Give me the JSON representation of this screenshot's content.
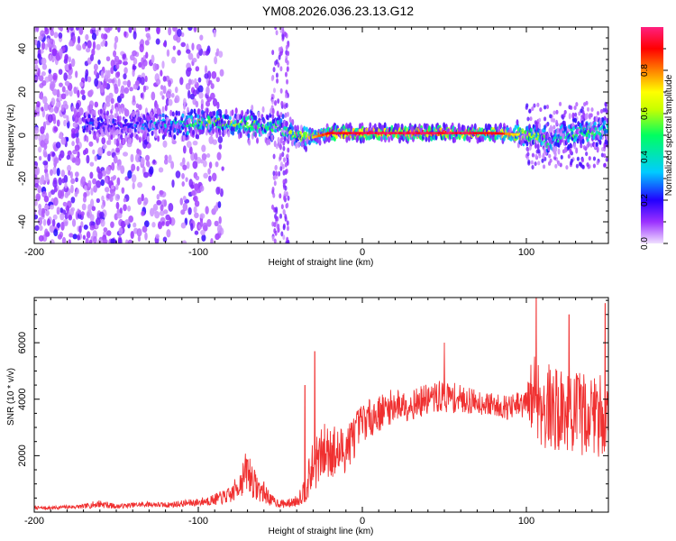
{
  "figure": {
    "title": "YM08.2026.036.23.13.G12"
  },
  "chart_data": [
    {
      "type": "heatmap",
      "name": "spectrogram",
      "xlabel": "Height of straight line (km)",
      "ylabel": "Frequency (Hz)",
      "xlim": [
        -200,
        150
      ],
      "ylim": [
        -50,
        50
      ],
      "xticks": [
        -200,
        -100,
        0,
        100
      ],
      "xtick_labels": [
        "-200",
        "-100",
        "0",
        "100"
      ],
      "yticks": [
        -40,
        -20,
        0,
        20,
        40
      ],
      "ytick_labels": [
        "-40",
        "-20",
        "0",
        "20",
        "40"
      ],
      "colorbar": {
        "label": "Normalized spectral amplitude",
        "range": [
          0,
          1
        ],
        "ticks": [
          0.0,
          0.2,
          0.4,
          0.6,
          0.8
        ],
        "tick_labels": [
          "0.0",
          "0.2",
          "0.4",
          "0.6",
          "0.8"
        ],
        "colors": [
          "#f0e0ff",
          "#9b30ff",
          "#2200ff",
          "#00ccff",
          "#00ff60",
          "#c8ff00",
          "#ffff00",
          "#ff8000",
          "#ff0000",
          "#ff2080"
        ]
      },
      "ridge": {
        "x": [
          -170,
          -150,
          -130,
          -110,
          -90,
          -70,
          -50,
          -40,
          -30,
          -20,
          -10,
          0,
          20,
          40,
          60,
          80,
          100,
          110,
          115,
          120,
          130,
          150
        ],
        "frequency": [
          5,
          5,
          5,
          5,
          6,
          5,
          3,
          0,
          -1,
          1,
          1,
          1,
          1,
          1,
          1,
          1,
          0,
          -1,
          -5,
          0,
          1,
          2
        ],
        "peak_amplitude": [
          0.25,
          0.2,
          0.3,
          0.4,
          0.55,
          0.5,
          0.45,
          0.6,
          0.75,
          0.9,
          0.9,
          0.95,
          0.95,
          0.95,
          0.95,
          0.9,
          0.6,
          0.5,
          0.35,
          0.4,
          0.45,
          0.45
        ]
      },
      "noise_region_km": [
        -200,
        -85
      ],
      "noise_strip_km": [
        -55,
        -45
      ]
    },
    {
      "type": "line",
      "name": "snr",
      "xlabel": "Height of straight line (km)",
      "ylabel": "SNR (10 * v/v)",
      "xlim": [
        -200,
        150
      ],
      "ylim": [
        0,
        7600
      ],
      "xticks": [
        -200,
        -100,
        0,
        100
      ],
      "xtick_labels": [
        "-200",
        "-100",
        "0",
        "100"
      ],
      "yticks": [
        2000,
        4000,
        6000
      ],
      "ytick_labels": [
        "2000",
        "4000",
        "6000"
      ],
      "color": "#f03030",
      "series": [
        {
          "name": "SNR",
          "x": [
            -200,
            -190,
            -180,
            -170,
            -160,
            -150,
            -140,
            -130,
            -120,
            -110,
            -100,
            -90,
            -80,
            -75,
            -70,
            -65,
            -60,
            -55,
            -50,
            -45,
            -40,
            -35,
            -30,
            -25,
            -20,
            -15,
            -10,
            -5,
            0,
            10,
            20,
            30,
            40,
            50,
            60,
            70,
            80,
            90,
            100,
            105,
            110,
            120,
            130,
            140,
            150
          ],
          "y": [
            150,
            150,
            180,
            200,
            300,
            200,
            250,
            280,
            250,
            300,
            350,
            450,
            600,
            1000,
            1500,
            900,
            700,
            400,
            300,
            300,
            400,
            800,
            1600,
            2000,
            2300,
            2000,
            2300,
            2700,
            3200,
            3500,
            3800,
            3800,
            4000,
            4100,
            4000,
            3900,
            3800,
            3700,
            3800,
            4200,
            3800,
            3600,
            3500,
            3500,
            3400
          ],
          "spread": [
            60,
            60,
            70,
            80,
            150,
            80,
            90,
            100,
            100,
            120,
            150,
            200,
            300,
            500,
            800,
            500,
            400,
            200,
            150,
            150,
            200,
            500,
            900,
            1000,
            1100,
            1000,
            900,
            800,
            700,
            650,
            600,
            550,
            550,
            600,
            500,
            450,
            400,
            450,
            600,
            1800,
            1600,
            1500,
            1500,
            1500,
            1500
          ]
        }
      ],
      "peaks": [
        {
          "x": -35,
          "y": 4500
        },
        {
          "x": -29,
          "y": 5700
        },
        {
          "x": 50,
          "y": 6000
        },
        {
          "x": 106,
          "y": 7600
        },
        {
          "x": 126,
          "y": 7000
        },
        {
          "x": 148,
          "y": 7400
        }
      ]
    }
  ]
}
